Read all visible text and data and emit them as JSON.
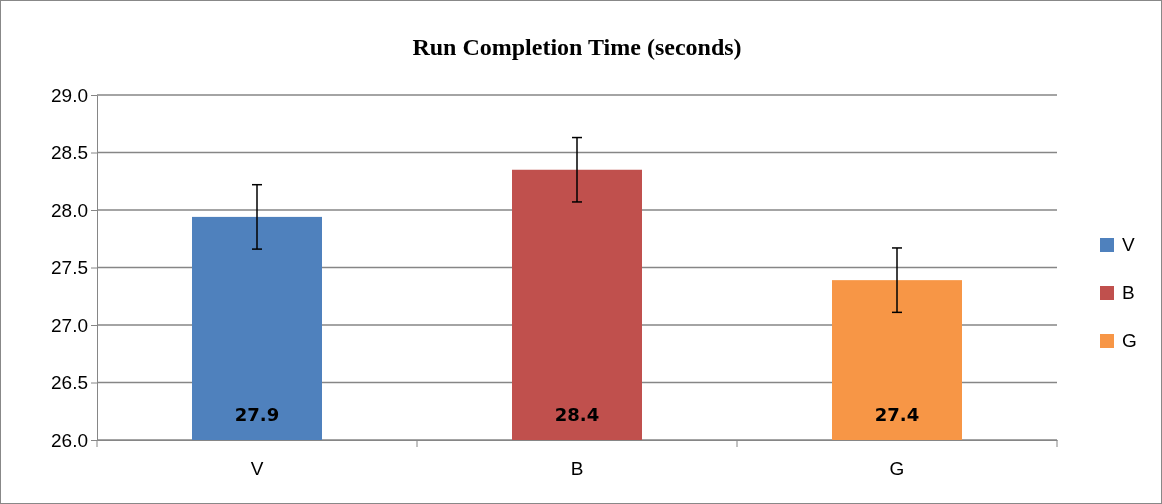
{
  "chart_data": {
    "type": "bar",
    "title": "Run Completion Time (seconds)",
    "categories": [
      "V",
      "B",
      "G"
    ],
    "stacked": true,
    "series": [
      {
        "name": "V",
        "color": "#4f81bd",
        "values": [
          27.94,
          null,
          null
        ],
        "errors": [
          0.28,
          null,
          null
        ],
        "value_labels": [
          "27.9",
          null,
          null
        ]
      },
      {
        "name": "B",
        "color": "#c0504d",
        "values": [
          null,
          28.35,
          null
        ],
        "errors": [
          null,
          0.28,
          null
        ],
        "value_labels": [
          null,
          "28.4",
          null
        ]
      },
      {
        "name": "G",
        "color": "#f79646",
        "values": [
          null,
          null,
          27.39
        ],
        "errors": [
          null,
          null,
          0.28
        ],
        "value_labels": [
          null,
          null,
          "27.4"
        ]
      }
    ],
    "ylim": [
      26.0,
      29.0
    ],
    "yticks": [
      {
        "value": 26,
        "label": "26.0"
      },
      {
        "value": 26.5,
        "label": "26.5"
      },
      {
        "value": 27,
        "label": "27.0"
      },
      {
        "value": 27.5,
        "label": "27.5"
      },
      {
        "value": 28,
        "label": "28.0"
      },
      {
        "value": 28.5,
        "label": "28.5"
      },
      {
        "value": 29,
        "label": "29.0"
      }
    ],
    "grid": "y",
    "legend": "right"
  }
}
